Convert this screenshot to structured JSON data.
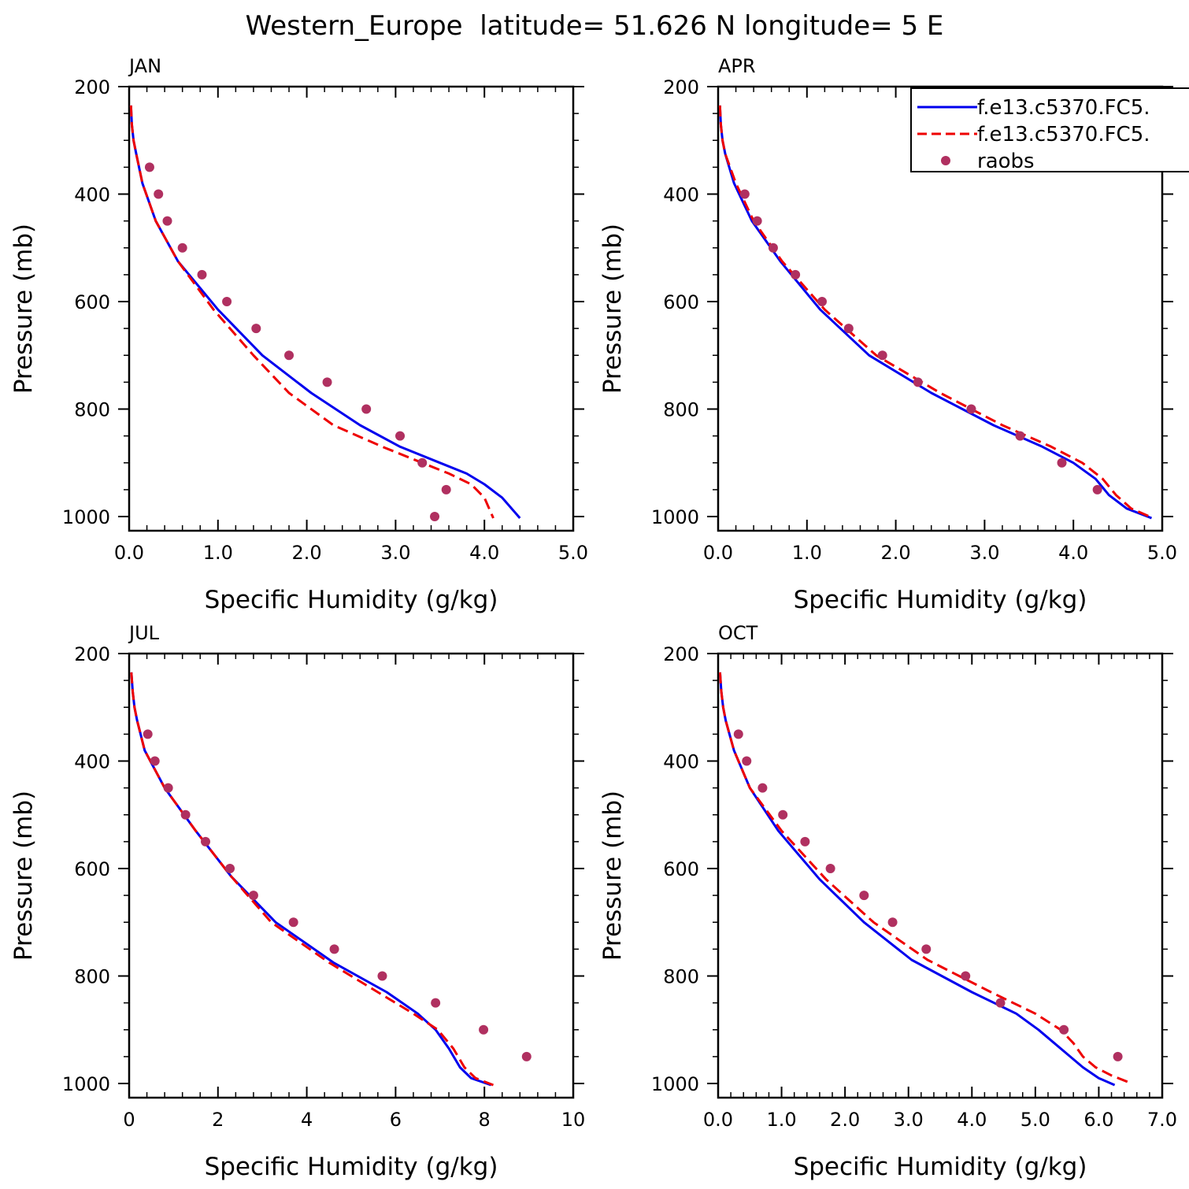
{
  "title": "Western_Europe  latitude= 51.626 N longitude= 5 E",
  "colors": {
    "model1": "#0000ee",
    "model2": "#ee0000",
    "raobs": "#b03060"
  },
  "legend": {
    "placement": "top-right of APR panel",
    "entries": [
      {
        "label": "f.e13.c5370.FC5.",
        "style": "solid",
        "color": "#0000ee"
      },
      {
        "label": "f.e13.c5370.FC5.",
        "style": "dashed",
        "color": "#ee0000"
      },
      {
        "label": "raobs",
        "style": "marker",
        "color": "#b03060"
      }
    ]
  },
  "chart_data": [
    {
      "type": "line",
      "title": "JAN",
      "xlabel": "Specific Humidity (g/kg)",
      "ylabel": "Pressure (mb)",
      "xlim": [
        0,
        5
      ],
      "ylim": [
        200,
        1000
      ],
      "y_inverted": true,
      "xticks": [
        0,
        1,
        2,
        3,
        4,
        5
      ],
      "xtick_labels": [
        "0.0",
        "1.0",
        "2.0",
        "3.0",
        "4.0",
        "5.0"
      ],
      "yticks": [
        200,
        400,
        600,
        800,
        1000
      ],
      "ytick_labels": [
        "200",
        "400",
        "600",
        "800",
        "1000"
      ],
      "series": [
        {
          "name": "f.e13.c5370.FC5.",
          "style": "solid",
          "color": "#0000ee",
          "x": [
            0.02,
            0.03,
            0.05,
            0.08,
            0.15,
            0.3,
            0.55,
            1.0,
            1.5,
            2.05,
            2.6,
            3.05,
            3.5,
            3.8,
            4.0,
            4.2,
            4.4
          ],
          "y": [
            235,
            270,
            300,
            325,
            380,
            450,
            525,
            615,
            700,
            770,
            830,
            870,
            900,
            920,
            940,
            965,
            1003
          ]
        },
        {
          "name": "f.e13.c5370.FC5.",
          "style": "dashed",
          "color": "#ee0000",
          "x": [
            0.02,
            0.03,
            0.05,
            0.08,
            0.15,
            0.3,
            0.55,
            0.95,
            1.4,
            1.8,
            2.3,
            2.85,
            3.3,
            3.6,
            3.85,
            4.0,
            4.1
          ],
          "y": [
            235,
            270,
            300,
            325,
            380,
            450,
            525,
            615,
            700,
            770,
            830,
            870,
            900,
            920,
            940,
            965,
            1003
          ]
        }
      ],
      "points": {
        "name": "raobs",
        "x": [
          0.23,
          0.33,
          0.43,
          0.6,
          0.82,
          1.1,
          1.43,
          1.8,
          2.23,
          2.67,
          3.05,
          3.3,
          3.57,
          3.44
        ],
        "y": [
          350,
          400,
          450,
          500,
          550,
          600,
          650,
          700,
          750,
          800,
          850,
          900,
          950,
          1000
        ]
      }
    },
    {
      "type": "line",
      "title": "APR",
      "xlabel": "Specific Humidity (g/kg)",
      "ylabel": "Pressure (mb)",
      "xlim": [
        0,
        5
      ],
      "ylim": [
        200,
        1000
      ],
      "y_inverted": true,
      "xticks": [
        0,
        1,
        2,
        3,
        4,
        5
      ],
      "xtick_labels": [
        "0.0",
        "1.0",
        "2.0",
        "3.0",
        "4.0",
        "5.0"
      ],
      "yticks": [
        200,
        400,
        600,
        800,
        1000
      ],
      "ytick_labels": [
        "200",
        "400",
        "600",
        "800",
        "1000"
      ],
      "series": [
        {
          "name": "f.e13.c5370.FC5.",
          "style": "solid",
          "color": "#0000ee",
          "x": [
            0.02,
            0.03,
            0.05,
            0.08,
            0.18,
            0.38,
            0.7,
            1.15,
            1.7,
            2.4,
            3.1,
            3.65,
            4.0,
            4.25,
            4.4,
            4.6,
            4.88
          ],
          "y": [
            235,
            270,
            300,
            325,
            380,
            450,
            525,
            615,
            700,
            770,
            830,
            870,
            900,
            930,
            960,
            985,
            1003
          ]
        },
        {
          "name": "f.e13.c5370.FC5.",
          "style": "dashed",
          "color": "#ee0000",
          "x": [
            0.02,
            0.03,
            0.05,
            0.08,
            0.2,
            0.4,
            0.72,
            1.2,
            1.78,
            2.5,
            3.2,
            3.75,
            4.1,
            4.33,
            4.48,
            4.65,
            4.9
          ],
          "y": [
            235,
            270,
            300,
            325,
            380,
            450,
            525,
            615,
            700,
            770,
            830,
            870,
            900,
            930,
            960,
            985,
            1003
          ]
        }
      ],
      "points": {
        "name": "raobs",
        "x": [
          0.3,
          0.44,
          0.62,
          0.87,
          1.17,
          1.47,
          1.85,
          2.25,
          2.85,
          3.4,
          3.87,
          4.27
        ],
        "y": [
          400,
          450,
          500,
          550,
          600,
          650,
          700,
          750,
          800,
          850,
          900,
          950
        ]
      }
    },
    {
      "type": "line",
      "title": "JUL",
      "xlabel": "Specific Humidity (g/kg)",
      "ylabel": "Pressure (mb)",
      "xlim": [
        0,
        10
      ],
      "ylim": [
        200,
        1000
      ],
      "y_inverted": true,
      "xticks": [
        0,
        2,
        4,
        6,
        8,
        10
      ],
      "xtick_labels": [
        "0",
        "2",
        "4",
        "6",
        "8",
        "10"
      ],
      "yticks": [
        200,
        400,
        600,
        800,
        1000
      ],
      "ytick_labels": [
        "200",
        "400",
        "600",
        "800",
        "1000"
      ],
      "series": [
        {
          "name": "f.e13.c5370.FC5.",
          "style": "solid",
          "color": "#0000ee",
          "x": [
            0.05,
            0.08,
            0.12,
            0.18,
            0.35,
            0.8,
            1.5,
            2.3,
            3.3,
            4.6,
            5.8,
            6.5,
            6.9,
            7.2,
            7.45,
            7.7,
            8.15
          ],
          "y": [
            235,
            270,
            300,
            325,
            380,
            450,
            530,
            615,
            700,
            775,
            830,
            870,
            900,
            935,
            970,
            990,
            1003
          ]
        },
        {
          "name": "f.e13.c5370.FC5.",
          "style": "dashed",
          "color": "#ee0000",
          "x": [
            0.05,
            0.08,
            0.12,
            0.18,
            0.35,
            0.8,
            1.5,
            2.3,
            3.2,
            4.5,
            5.6,
            6.4,
            6.95,
            7.3,
            7.55,
            7.8,
            8.2
          ],
          "y": [
            235,
            270,
            300,
            325,
            380,
            450,
            530,
            615,
            700,
            775,
            830,
            870,
            900,
            935,
            970,
            990,
            1003
          ]
        }
      ],
      "points": {
        "name": "raobs",
        "x": [
          0.42,
          0.58,
          0.88,
          1.27,
          1.72,
          2.27,
          2.8,
          3.7,
          4.62,
          5.7,
          6.9,
          7.98,
          8.95
        ],
        "y": [
          350,
          400,
          450,
          500,
          550,
          600,
          650,
          700,
          750,
          800,
          850,
          900,
          950
        ]
      }
    },
    {
      "type": "line",
      "title": "OCT",
      "xlabel": "Specific Humidity (g/kg)",
      "ylabel": "Pressure (mb)",
      "xlim": [
        0,
        7
      ],
      "ylim": [
        200,
        1000
      ],
      "y_inverted": true,
      "xticks": [
        0,
        1,
        2,
        3,
        4,
        5,
        6,
        7
      ],
      "xtick_labels": [
        "0.0",
        "1.0",
        "2.0",
        "3.0",
        "4.0",
        "5.0",
        "6.0",
        "7.0"
      ],
      "yticks": [
        200,
        400,
        600,
        800,
        1000
      ],
      "ytick_labels": [
        "200",
        "400",
        "600",
        "800",
        "1000"
      ],
      "series": [
        {
          "name": "f.e13.c5370.FC5.",
          "style": "solid",
          "color": "#0000ee",
          "x": [
            0.03,
            0.05,
            0.08,
            0.12,
            0.25,
            0.5,
            0.95,
            1.6,
            2.3,
            3.05,
            4.0,
            4.7,
            5.05,
            5.3,
            5.55,
            5.75,
            6.0,
            6.25
          ],
          "y": [
            235,
            270,
            300,
            325,
            380,
            450,
            530,
            620,
            700,
            770,
            830,
            870,
            900,
            925,
            950,
            970,
            990,
            1003
          ]
        },
        {
          "name": "f.e13.c5370.FC5.",
          "style": "dashed",
          "color": "#ee0000",
          "x": [
            0.03,
            0.05,
            0.08,
            0.12,
            0.25,
            0.5,
            1.0,
            1.7,
            2.45,
            3.3,
            4.3,
            5.0,
            5.4,
            5.6,
            5.75,
            5.95,
            6.2,
            6.52
          ],
          "y": [
            235,
            270,
            300,
            325,
            380,
            450,
            530,
            620,
            700,
            770,
            830,
            870,
            900,
            925,
            950,
            970,
            985,
            1000
          ]
        }
      ],
      "points": {
        "name": "raobs",
        "x": [
          0.32,
          0.45,
          0.7,
          1.02,
          1.37,
          1.77,
          2.3,
          2.75,
          3.28,
          3.9,
          4.45,
          5.45,
          6.3
        ],
        "y": [
          350,
          400,
          450,
          500,
          550,
          600,
          650,
          700,
          750,
          800,
          850,
          900,
          950
        ]
      }
    }
  ]
}
